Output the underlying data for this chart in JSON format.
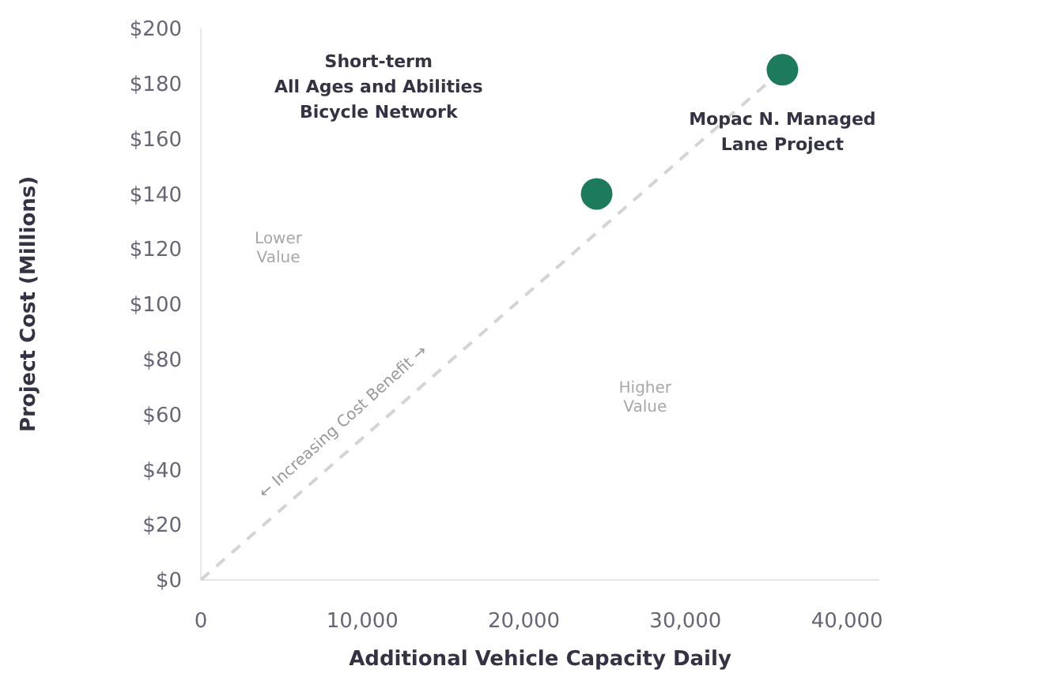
{
  "chart_data": {
    "type": "scatter",
    "xlabel": "Additional Vehicle Capacity Daily",
    "ylabel": "Project Cost (Millions)",
    "xlim": [
      0,
      42000
    ],
    "xticks": [
      {
        "value": 0,
        "label": "0"
      },
      {
        "value": 10000,
        "label": "10,000"
      },
      {
        "value": 20000,
        "label": "20,000"
      },
      {
        "value": 30000,
        "label": "30,000"
      },
      {
        "value": 40000,
        "label": "40,000"
      }
    ],
    "ylim": [
      0,
      200
    ],
    "yticks": [
      {
        "value": 0,
        "label": "$0"
      },
      {
        "value": 20,
        "label": "$20"
      },
      {
        "value": 40,
        "label": "$40"
      },
      {
        "value": 60,
        "label": "$60"
      },
      {
        "value": 80,
        "label": "$80"
      },
      {
        "value": 100,
        "label": "$100"
      },
      {
        "value": 120,
        "label": "$120"
      },
      {
        "value": 140,
        "label": "$140"
      },
      {
        "value": 160,
        "label": "$160"
      },
      {
        "value": 180,
        "label": "$180"
      },
      {
        "value": 200,
        "label": "$200"
      }
    ],
    "series": [
      {
        "type": "line",
        "color": "#d4d4d4",
        "line_style": "dashed",
        "x": [
          0,
          36000
        ],
        "values": [
          0,
          185
        ]
      },
      {
        "color": "#1e7a5c",
        "marker": "circle",
        "x": [
          24500,
          36000
        ],
        "values": [
          140,
          185
        ]
      }
    ],
    "annotations": [
      "Short-term\nAll Ages and Abilities\nBicycle Network",
      {
        "text": "Mopac N. Managed\nLane Project",
        "x": 36000,
        "y": 185
      },
      "Lower\nValue",
      "Higher\nValue",
      "← Increasing Cost Benefit →"
    ],
    "grid": false
  }
}
